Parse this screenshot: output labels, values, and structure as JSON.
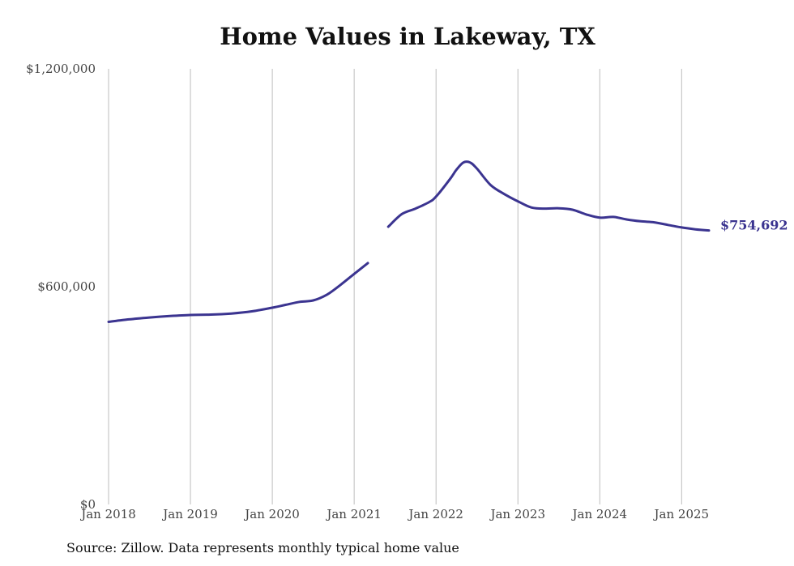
{
  "chart_data": {
    "type": "line",
    "title": "Home Values in Lakeway, TX",
    "xlabel": "",
    "ylabel": "",
    "x_tick_labels": [
      "Jan 2018",
      "Jan 2019",
      "Jan 2020",
      "Jan 2021",
      "Jan 2022",
      "Jan 2023",
      "Jan 2024",
      "Jan 2025"
    ],
    "y_tick_labels": [
      "$1,200,000",
      "$600,000",
      "$0"
    ],
    "y_ticks": [
      1200000,
      600000,
      0
    ],
    "ylim": [
      0,
      1200000
    ],
    "xlim": [
      "2018-01",
      "2025-05"
    ],
    "grid": "vertical",
    "line_color": "#3b3490",
    "end_label": "$754,692",
    "series": [
      {
        "segments": [
          {
            "x": [
              "2018-01",
              "2018-04",
              "2018-07",
              "2018-10",
              "2019-01",
              "2019-04",
              "2019-07",
              "2019-10",
              "2020-01",
              "2020-03",
              "2020-05",
              "2020-07",
              "2020-09",
              "2020-11",
              "2021-01",
              "2021-03"
            ],
            "y": [
              503000,
              510000,
              515000,
              519000,
              522000,
              523000,
              526000,
              532000,
              542000,
              550000,
              558000,
              562000,
              578000,
              605000,
              635000,
              665000
            ]
          },
          {
            "x": [
              "2021-06",
              "2021-08",
              "2021-10",
              "2021-12",
              "2022-01",
              "2022-03",
              "2022-04",
              "2022-05",
              "2022-06",
              "2022-07",
              "2022-09",
              "2022-11",
              "2023-01",
              "2023-03",
              "2023-05",
              "2023-07",
              "2023-09",
              "2023-11",
              "2024-01",
              "2024-03",
              "2024-05",
              "2024-07",
              "2024-09",
              "2024-11",
              "2025-01",
              "2025-03",
              "2025-05"
            ],
            "y": [
              765000,
              800000,
              815000,
              833000,
              848000,
              895000,
              922000,
              942000,
              942000,
              925000,
              880000,
              855000,
              835000,
              818000,
              815000,
              816000,
              812000,
              799000,
              790000,
              792000,
              785000,
              780000,
              777000,
              770000,
              763000,
              758000,
              754692
            ]
          }
        ]
      }
    ]
  },
  "source_note": "Source: Zillow. Data represents monthly typical home value"
}
